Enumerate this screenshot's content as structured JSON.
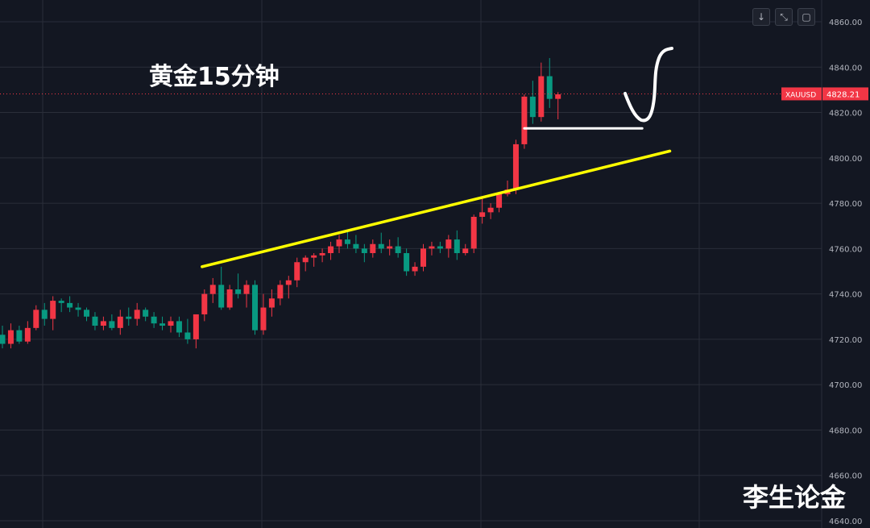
{
  "title": "黄金15分钟",
  "watermark": "李生论金",
  "toolbar": [
    {
      "icon": "arrow-down-icon",
      "glyph": "↓"
    },
    {
      "icon": "zoom-fit-icon",
      "glyph": "⤡"
    },
    {
      "icon": "fullscreen-icon",
      "glyph": "▢"
    }
  ],
  "chart_data": {
    "type": "candlestick",
    "symbol": "XAUUSD",
    "last_price_label": "4828.21",
    "last_price": 4828.21,
    "ylim": [
      4640,
      4860
    ],
    "y_ticks": [
      "4640.00",
      "4660.00",
      "4680.00",
      "4700.00",
      "4720.00",
      "4740.00",
      "4760.00",
      "4780.00",
      "4800.00",
      "4820.00",
      "4840.00",
      "4860.00"
    ],
    "grid": true,
    "colors": {
      "up": "#f23645",
      "down": "#089981",
      "bg": "#131722",
      "grid": "#2a2e39",
      "price_line": "#f23645",
      "trendline": "#ffff00",
      "annotation": "#ffffff"
    },
    "candles": [
      [
        4722,
        4726,
        4716,
        4718
      ],
      [
        4718,
        4727,
        4716,
        4724
      ],
      [
        4724,
        4726,
        4718,
        4719
      ],
      [
        4719,
        4728,
        4718,
        4725
      ],
      [
        4725,
        4735,
        4724,
        4733
      ],
      [
        4733,
        4736,
        4726,
        4729
      ],
      [
        4729,
        4739,
        4724,
        4737
      ],
      [
        4737,
        4738,
        4732,
        4736
      ],
      [
        4736,
        4739,
        4732,
        4734
      ],
      [
        4734,
        4736,
        4730,
        4733
      ],
      [
        4733,
        4734,
        4728,
        4730
      ],
      [
        4730,
        4732,
        4724,
        4726
      ],
      [
        4726,
        4730,
        4724,
        4728
      ],
      [
        4728,
        4731,
        4724,
        4725
      ],
      [
        4725,
        4733,
        4722,
        4730
      ],
      [
        4730,
        4734,
        4726,
        4729
      ],
      [
        4729,
        4736,
        4726,
        4733
      ],
      [
        4733,
        4734,
        4728,
        4730
      ],
      [
        4730,
        4732,
        4725,
        4727
      ],
      [
        4727,
        4730,
        4724,
        4726
      ],
      [
        4726,
        4730,
        4723,
        4728
      ],
      [
        4728,
        4730,
        4721,
        4723
      ],
      [
        4723,
        4729,
        4718,
        4720
      ],
      [
        4720,
        4731,
        4716,
        4731
      ],
      [
        4731,
        4742,
        4728,
        4740
      ],
      [
        4740,
        4747,
        4736,
        4744
      ],
      [
        4744,
        4752,
        4733,
        4734
      ],
      [
        4734,
        4744,
        4733,
        4742
      ],
      [
        4742,
        4749,
        4738,
        4740
      ],
      [
        4740,
        4746,
        4734,
        4744
      ],
      [
        4744,
        4746,
        4722,
        4724
      ],
      [
        4724,
        4740,
        4722,
        4734
      ],
      [
        4734,
        4742,
        4730,
        4738
      ],
      [
        4738,
        4746,
        4735,
        4744
      ],
      [
        4744,
        4748,
        4738,
        4746
      ],
      [
        4746,
        4756,
        4743,
        4754
      ],
      [
        4754,
        4757,
        4750,
        4756
      ],
      [
        4756,
        4758,
        4752,
        4757
      ],
      [
        4757,
        4760,
        4754,
        4758
      ],
      [
        4758,
        4763,
        4755,
        4761
      ],
      [
        4761,
        4766,
        4758,
        4764
      ],
      [
        4764,
        4768,
        4760,
        4762
      ],
      [
        4762,
        4766,
        4758,
        4760
      ],
      [
        4760,
        4762,
        4754,
        4758
      ],
      [
        4758,
        4764,
        4756,
        4762
      ],
      [
        4762,
        4767,
        4758,
        4760
      ],
      [
        4760,
        4764,
        4757,
        4761
      ],
      [
        4761,
        4765,
        4756,
        4758
      ],
      [
        4758,
        4760,
        4748,
        4750
      ],
      [
        4750,
        4754,
        4748,
        4752
      ],
      [
        4752,
        4762,
        4750,
        4760
      ],
      [
        4760,
        4763,
        4757,
        4761
      ],
      [
        4761,
        4763,
        4758,
        4760
      ],
      [
        4760,
        4766,
        4756,
        4764
      ],
      [
        4764,
        4768,
        4755,
        4758
      ],
      [
        4758,
        4762,
        4757,
        4760
      ],
      [
        4760,
        4775,
        4758,
        4774
      ],
      [
        4774,
        4782,
        4771,
        4776
      ],
      [
        4776,
        4780,
        4773,
        4778
      ],
      [
        4778,
        4785,
        4776,
        4784
      ],
      [
        4784,
        4790,
        4783,
        4786
      ],
      [
        4786,
        4808,
        4784,
        4806
      ],
      [
        4806,
        4828,
        4804,
        4827
      ],
      [
        4827,
        4834,
        4815,
        4818
      ],
      [
        4818,
        4842,
        4816,
        4836
      ],
      [
        4836,
        4844,
        4822,
        4826
      ],
      [
        4826,
        4829,
        4817,
        4828
      ]
    ],
    "trendline": {
      "from": [
        24,
        4752
      ],
      "to": [
        79,
        4803
      ]
    },
    "support_line": {
      "from": [
        62,
        4813
      ],
      "to": [
        76,
        4813
      ]
    }
  }
}
